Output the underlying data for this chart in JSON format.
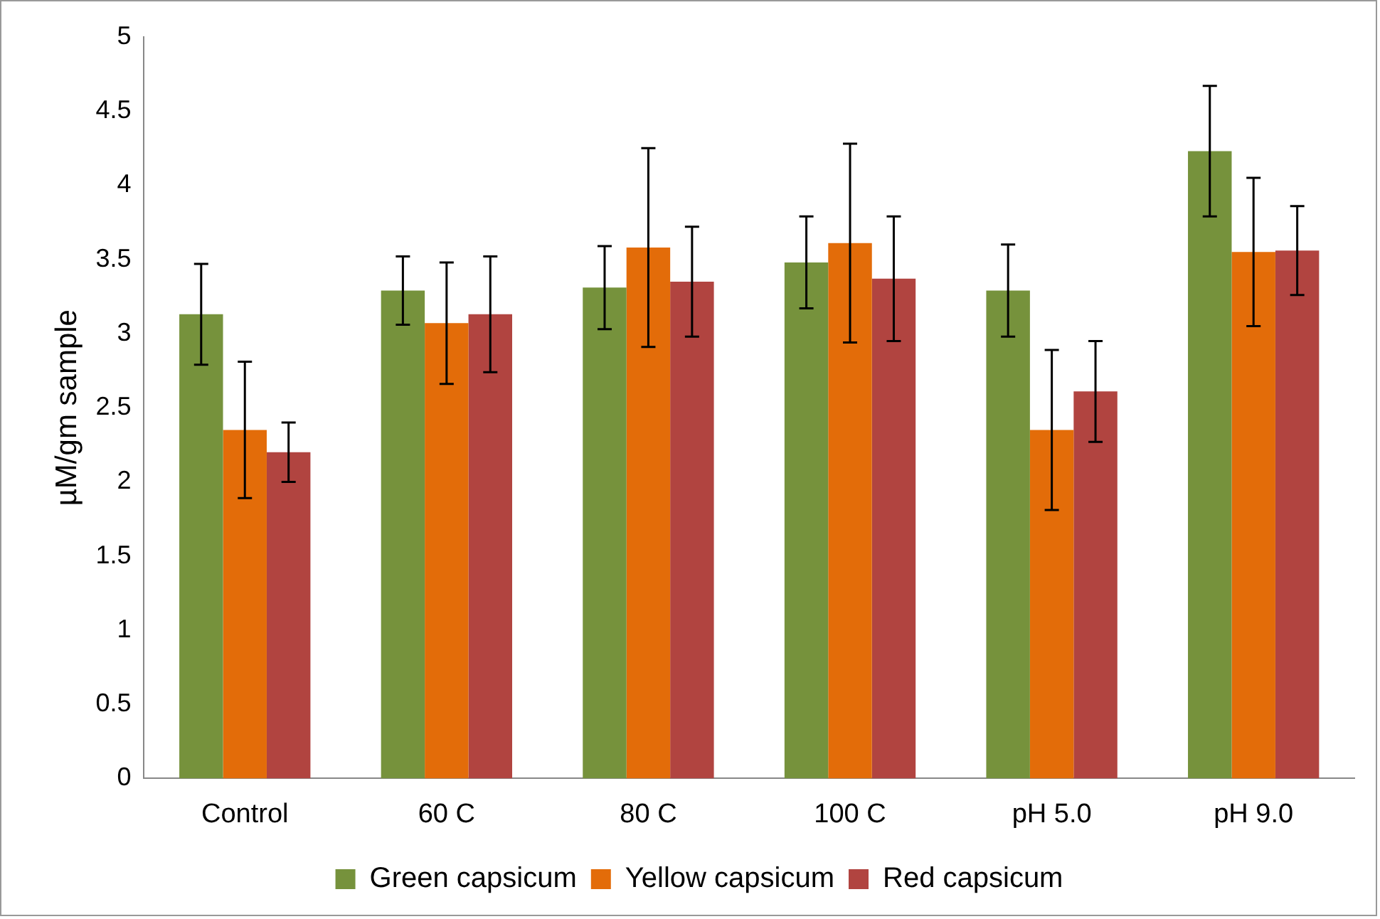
{
  "chart_data": {
    "type": "bar",
    "ylabel": "µM/gm sample",
    "categories": [
      "Control",
      "60 C",
      "80 C",
      "100 C",
      "pH 5.0",
      "pH 9.0"
    ],
    "series": [
      {
        "name": "Green capsicum",
        "color": "#76923c",
        "values": [
          3.13,
          3.29,
          3.31,
          3.48,
          3.29,
          4.23
        ],
        "errors": [
          0.34,
          0.23,
          0.28,
          0.31,
          0.31,
          0.44
        ]
      },
      {
        "name": "Yellow capsicum",
        "color": "#e36c09",
        "values": [
          2.35,
          3.07,
          3.58,
          3.61,
          2.35,
          3.55
        ],
        "errors": [
          0.46,
          0.41,
          0.67,
          0.67,
          0.54,
          0.5
        ]
      },
      {
        "name": "Red capsicum",
        "color": "#b14440",
        "values": [
          2.2,
          3.13,
          3.35,
          3.37,
          2.61,
          3.56
        ],
        "errors": [
          0.2,
          0.39,
          0.37,
          0.42,
          0.34,
          0.3
        ]
      }
    ],
    "ylim": [
      0,
      5
    ],
    "yticks": [
      0,
      0.5,
      1,
      1.5,
      2,
      2.5,
      3,
      3.5,
      4,
      4.5,
      5
    ],
    "grid": false,
    "legend": "bottom"
  }
}
